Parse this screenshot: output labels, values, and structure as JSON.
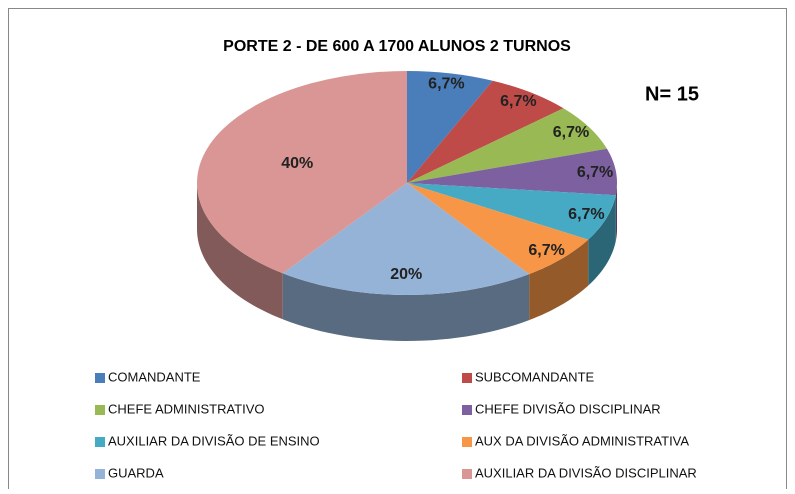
{
  "chart_data": {
    "type": "pie",
    "title": "PORTE 2 - DE 600 A 1700 ALUNOS 2 TURNOS",
    "annotation": "N= 15",
    "categories": [
      "COMANDANTE",
      "SUBCOMANDANTE",
      "CHEFE ADMINISTRATIVO",
      "CHEFE DIVISÃO DISCIPLINAR",
      "AUXILIAR DA DIVISÃO DE ENSINO",
      "AUX DA DIVISÃO ADMINISTRATIVA",
      "GUARDA",
      "AUXILIAR DA DIVISÃO DISCIPLINAR"
    ],
    "values": [
      6.7,
      6.7,
      6.7,
      6.7,
      6.7,
      6.7,
      20,
      40
    ],
    "value_labels": [
      "6,7%",
      "6,7%",
      "6,7%",
      "6,7%",
      "6,7%",
      "6,7%",
      "20%",
      "40%"
    ],
    "colors": [
      "#4a7ebb",
      "#be4b48",
      "#98b954",
      "#7d60a0",
      "#46aac5",
      "#f79646",
      "#95b3d7",
      "#d99694"
    ]
  }
}
